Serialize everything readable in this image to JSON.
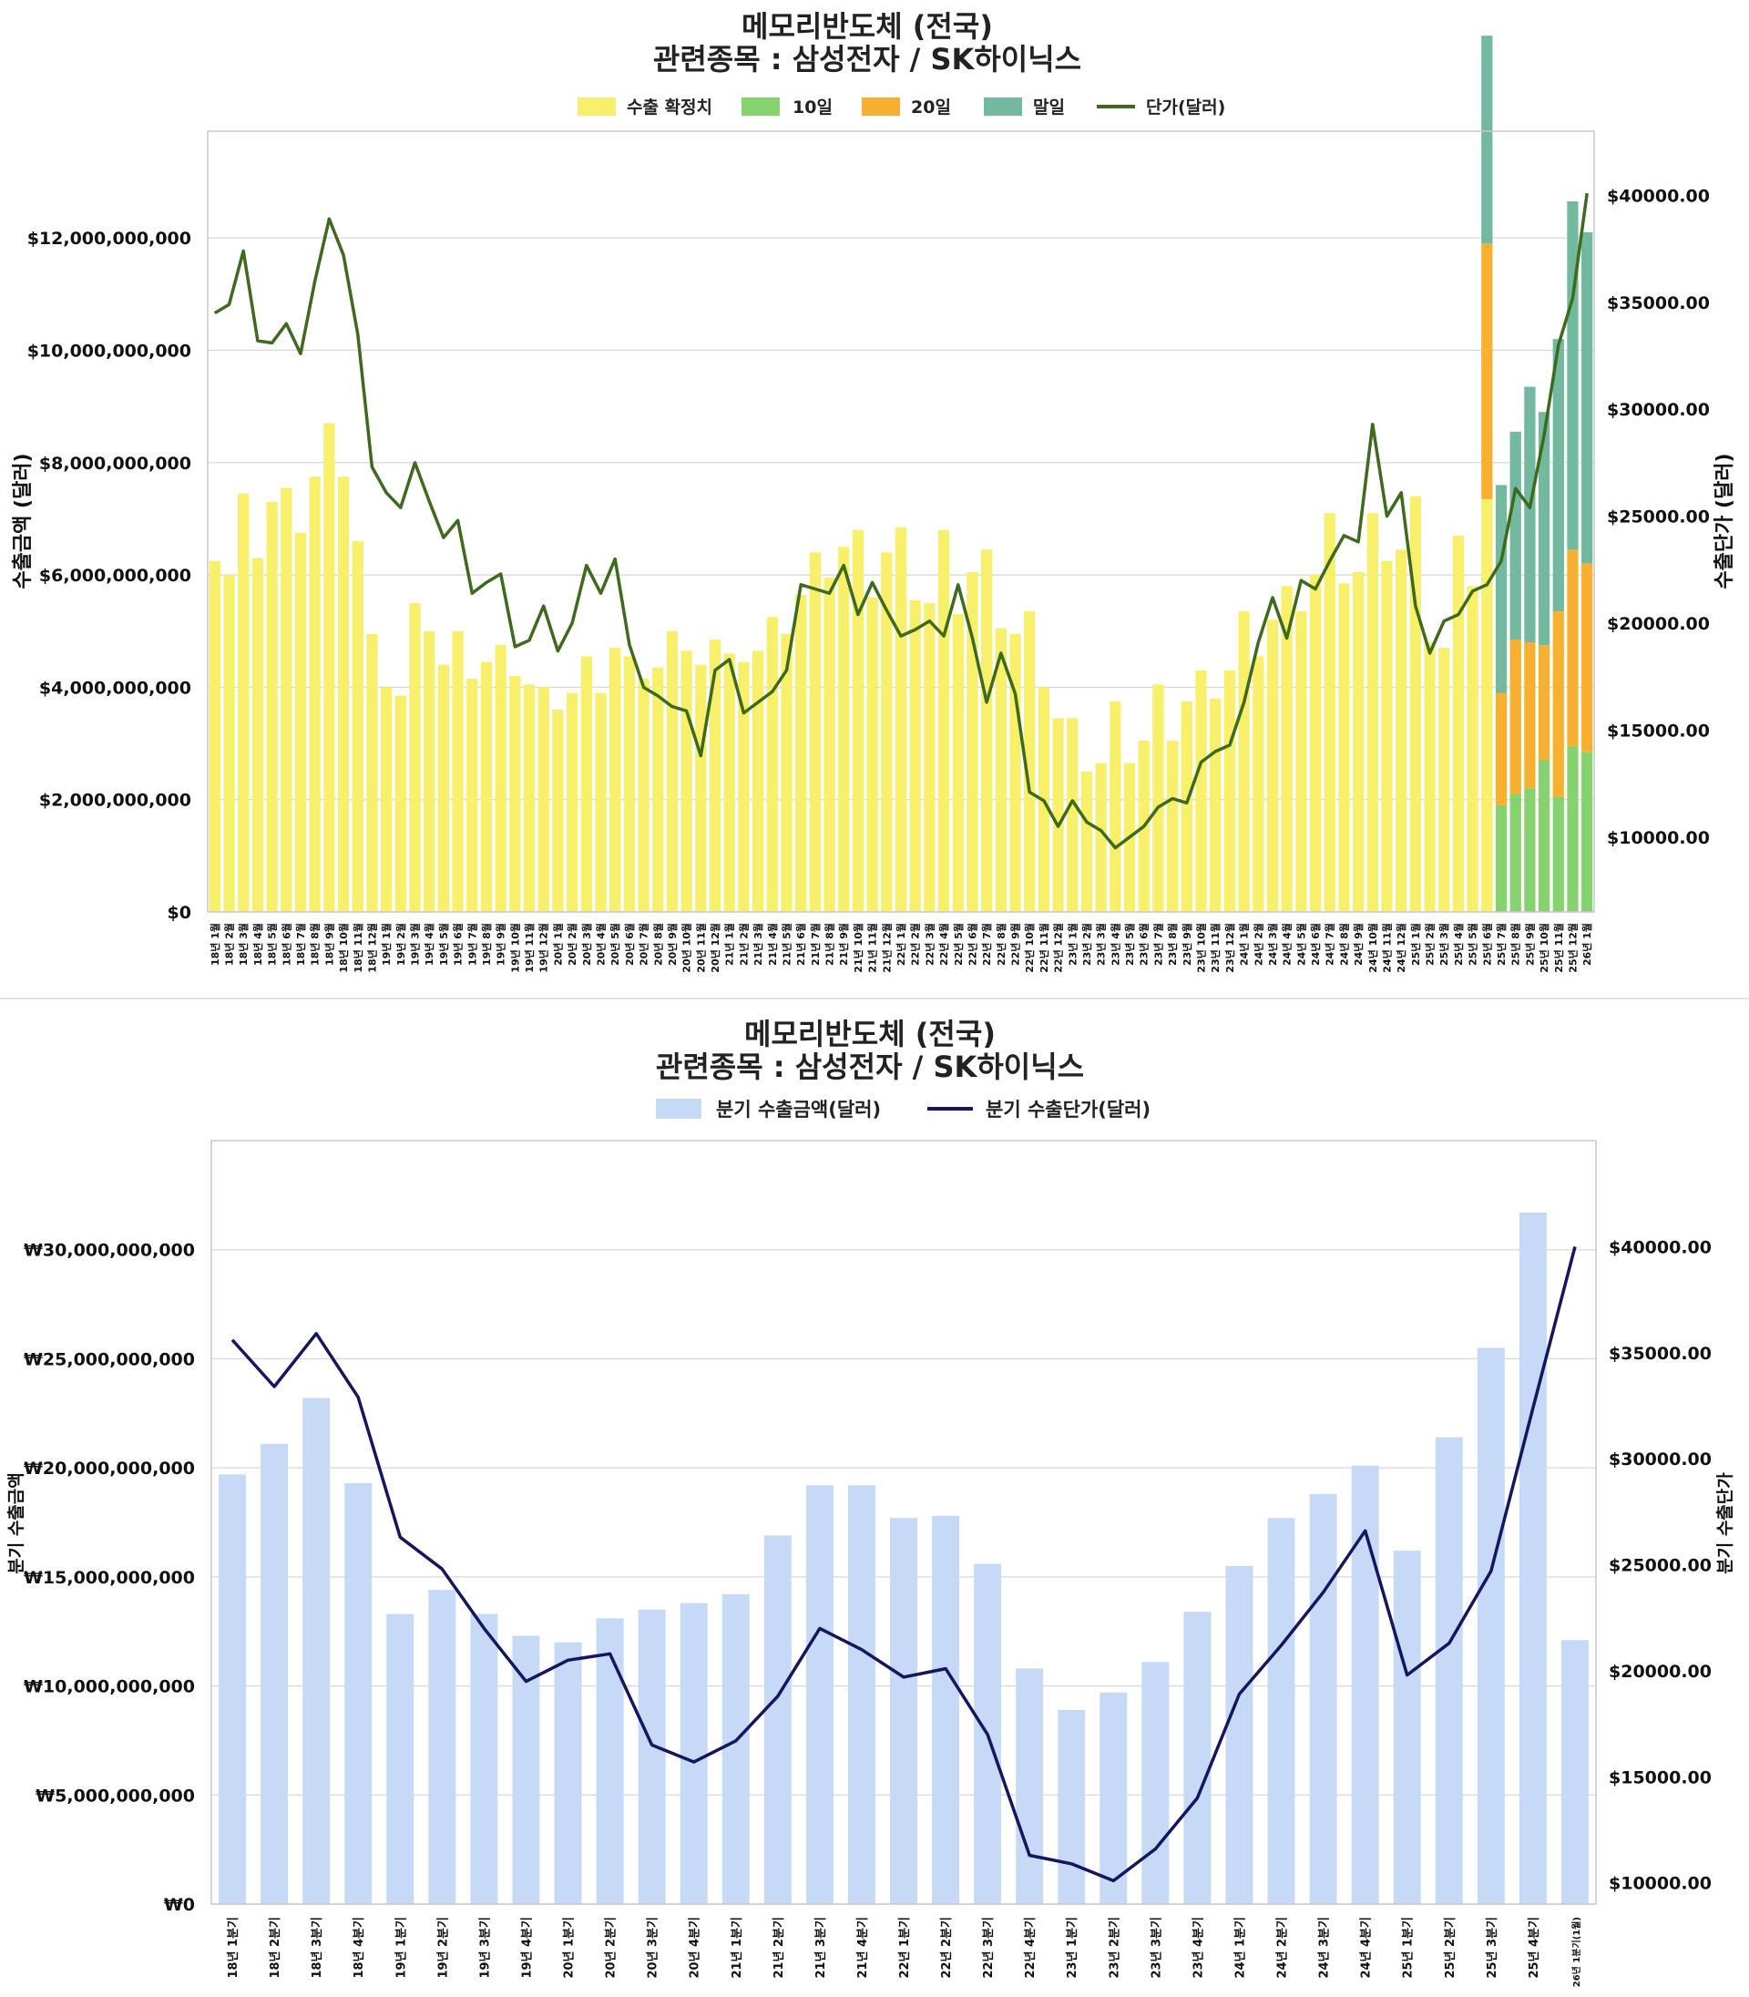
{
  "chart_data": [
    {
      "type": "bar",
      "title": "메모리반도체 (전국)",
      "subtitle": "관련종목 : 삼성전자 / SK하이닉스",
      "ylabel": "수출금액 (달러)",
      "y2label": "수출단가 (달러)",
      "ylim": [
        0,
        13900000000
      ],
      "y2lim": [
        6500,
        43000
      ],
      "yticks": [
        "$0",
        "$2,000,000,000",
        "$4,000,000,000",
        "$6,000,000,000",
        "$8,000,000,000",
        "$10,000,000,000",
        "$12,000,000,000"
      ],
      "y2ticks": [
        "$10000.00",
        "$15000.00",
        "$20000.00",
        "$25000.00",
        "$30000.00",
        "$35000.00",
        "$40000.00"
      ],
      "legend": [
        "수출 확정치",
        "10일",
        "20일",
        "말일",
        "단가(달러)"
      ],
      "legend_position": "top-center",
      "grid": true,
      "colors": {
        "confirmed": "#f8ef6a",
        "d10": "#86d26f",
        "d20": "#f8b031",
        "end": "#72b9a0",
        "line": "#3d6a1c"
      },
      "categories": [
        "18년 1월",
        "18년 2월",
        "18년 3월",
        "18년 4월",
        "18년 5월",
        "18년 6월",
        "18년 7월",
        "18년 8월",
        "18년 9월",
        "18년 10월",
        "18년 11월",
        "18년 12월",
        "19년 1월",
        "19년 2월",
        "19년 3월",
        "19년 4월",
        "19년 5월",
        "19년 6월",
        "19년 7월",
        "19년 8월",
        "19년 9월",
        "19년 10월",
        "19년 11월",
        "19년 12월",
        "20년 1월",
        "20년 2월",
        "20년 3월",
        "20년 4월",
        "20년 5월",
        "20년 6월",
        "20년 7월",
        "20년 8월",
        "20년 9월",
        "20년 10월",
        "20년 11월",
        "20년 12월",
        "21년 1월",
        "21년 2월",
        "21년 3월",
        "21년 4월",
        "21년 5월",
        "21년 6월",
        "21년 7월",
        "21년 8월",
        "21년 9월",
        "21년 10월",
        "21년 11월",
        "21년 12월",
        "22년 1월",
        "22년 2월",
        "22년 3월",
        "22년 4월",
        "22년 5월",
        "22년 6월",
        "22년 7월",
        "22년 8월",
        "22년 9월",
        "22년 10월",
        "22년 11월",
        "22년 12월",
        "23년 1월",
        "23년 2월",
        "23년 3월",
        "23년 4월",
        "23년 5월",
        "23년 6월",
        "23년 7월",
        "23년 8월",
        "23년 9월",
        "23년 10월",
        "23년 11월",
        "23년 12월",
        "24년 1월",
        "24년 2월",
        "24년 3월",
        "24년 4월",
        "24년 5월",
        "24년 6월",
        "24년 7월",
        "24년 8월",
        "24년 9월",
        "24년 10월",
        "24년 11월",
        "24년 12월",
        "25년 1월",
        "25년 2월",
        "25년 3월",
        "25년 4월",
        "25년 5월",
        "25년 6월",
        "25년 7월",
        "25년 8월",
        "25년 9월",
        "25년 10월",
        "25년 11월",
        "25년 12월",
        "26년 1월"
      ],
      "series": [
        {
          "name": "수출 확정치",
          "values": [
            6250000000,
            6000000000,
            7450000000,
            6300000000,
            7300000000,
            7550000000,
            6750000000,
            7750000000,
            8700000000,
            7750000000,
            6600000000,
            4950000000,
            4000000000,
            3850000000,
            5500000000,
            5000000000,
            4400000000,
            5000000000,
            4150000000,
            4450000000,
            4750000000,
            4200000000,
            4050000000,
            4000000000,
            3600000000,
            3900000000,
            4550000000,
            3900000000,
            4700000000,
            4550000000,
            4150000000,
            4350000000,
            5000000000,
            4650000000,
            4400000000,
            4850000000,
            4600000000,
            4450000000,
            4650000000,
            5250000000,
            4950000000,
            5650000000,
            6400000000,
            5950000000,
            6500000000,
            6800000000,
            5600000000,
            6400000000,
            6850000000,
            5550000000,
            5500000000,
            6800000000,
            5300000000,
            6050000000,
            6450000000,
            5050000000,
            4950000000,
            5350000000,
            4000000000,
            3450000000,
            3450000000,
            2500000000,
            2650000000,
            3750000000,
            2650000000,
            3050000000,
            4050000000,
            3050000000,
            3750000000,
            4300000000,
            3800000000,
            4300000000,
            5350000000,
            4550000000,
            5200000000,
            5800000000,
            5350000000,
            6000000000,
            7100000000,
            5850000000,
            6050000000,
            7100000000,
            6250000000,
            6450000000,
            7400000000,
            4800000000,
            4700000000,
            6700000000,
            5800000000,
            7350000000,
            0,
            0,
            0,
            0,
            0,
            0,
            0
          ]
        },
        {
          "name": "10일",
          "values": [
            0,
            0,
            0,
            0,
            0,
            0,
            0,
            0,
            0,
            0,
            0,
            0,
            0,
            0,
            0,
            0,
            0,
            0,
            0,
            0,
            0,
            0,
            0,
            0,
            0,
            0,
            0,
            0,
            0,
            0,
            0,
            0,
            0,
            0,
            0,
            0,
            0,
            0,
            0,
            0,
            0,
            0,
            0,
            0,
            0,
            0,
            0,
            0,
            0,
            0,
            0,
            0,
            0,
            0,
            0,
            0,
            0,
            0,
            0,
            0,
            0,
            0,
            0,
            0,
            0,
            0,
            0,
            0,
            0,
            0,
            0,
            0,
            0,
            0,
            0,
            0,
            0,
            0,
            0,
            0,
            0,
            0,
            0,
            0,
            0,
            0,
            0,
            0,
            0,
            0,
            1900000000,
            2100000000,
            2200000000,
            2700000000,
            2050000000,
            2950000000,
            2850000000
          ]
        },
        {
          "name": "20일",
          "values": [
            0,
            0,
            0,
            0,
            0,
            0,
            0,
            0,
            0,
            0,
            0,
            0,
            0,
            0,
            0,
            0,
            0,
            0,
            0,
            0,
            0,
            0,
            0,
            0,
            0,
            0,
            0,
            0,
            0,
            0,
            0,
            0,
            0,
            0,
            0,
            0,
            0,
            0,
            0,
            0,
            0,
            0,
            0,
            0,
            0,
            0,
            0,
            0,
            0,
            0,
            0,
            0,
            0,
            0,
            0,
            0,
            0,
            0,
            0,
            0,
            0,
            0,
            0,
            0,
            0,
            0,
            0,
            0,
            0,
            0,
            0,
            0,
            0,
            0,
            0,
            0,
            0,
            0,
            0,
            0,
            0,
            0,
            0,
            0,
            0,
            0,
            0,
            0,
            0,
            4550000000,
            2000000000,
            2750000000,
            2600000000,
            2050000000,
            3300000000,
            3500000000,
            3350000000
          ]
        },
        {
          "name": "말일",
          "values": [
            0,
            0,
            0,
            0,
            0,
            0,
            0,
            0,
            0,
            0,
            0,
            0,
            0,
            0,
            0,
            0,
            0,
            0,
            0,
            0,
            0,
            0,
            0,
            0,
            0,
            0,
            0,
            0,
            0,
            0,
            0,
            0,
            0,
            0,
            0,
            0,
            0,
            0,
            0,
            0,
            0,
            0,
            0,
            0,
            0,
            0,
            0,
            0,
            0,
            0,
            0,
            0,
            0,
            0,
            0,
            0,
            0,
            0,
            0,
            0,
            0,
            0,
            0,
            0,
            0,
            0,
            0,
            0,
            0,
            0,
            0,
            0,
            0,
            0,
            0,
            0,
            0,
            0,
            0,
            0,
            0,
            0,
            0,
            0,
            0,
            0,
            0,
            0,
            0,
            3700000000,
            3700000000,
            3700000000,
            4550000000,
            4150000000,
            4850000000,
            6200000000,
            5900000000
          ]
        },
        {
          "name": "단가(달러)",
          "axis": "right",
          "values": [
            34500,
            34900,
            37400,
            33200,
            33100,
            34000,
            32600,
            36000,
            38900,
            37200,
            33500,
            27300,
            26100,
            25400,
            27500,
            25700,
            24000,
            24800,
            21400,
            21900,
            22300,
            18900,
            19200,
            20800,
            18700,
            20000,
            22700,
            21400,
            23000,
            19000,
            17000,
            16600,
            16100,
            15900,
            13800,
            17800,
            18300,
            15800,
            16300,
            16800,
            17800,
            21800,
            21600,
            21400,
            22700,
            20400,
            21900,
            20600,
            19400,
            19700,
            20100,
            19400,
            21800,
            19300,
            16300,
            18600,
            16700,
            12100,
            11700,
            10500,
            11700,
            10700,
            10300,
            9500,
            10000,
            10500,
            11400,
            11800,
            11600,
            13500,
            14000,
            14300,
            16300,
            19100,
            21200,
            19300,
            22000,
            21600,
            22900,
            24100,
            23800,
            29300,
            25000,
            26100,
            20800,
            18600,
            20100,
            20400,
            21500,
            21800,
            22900,
            26300,
            25400,
            28800,
            33000,
            35200,
            40100
          ]
        }
      ]
    },
    {
      "type": "bar",
      "title": "메모리반도체 (전국)",
      "subtitle": "관련종목 : 삼성전자 / SK하이닉스",
      "ylabel": "분기 수출금액",
      "y2label": "분기 수출단가",
      "ylim": [
        0,
        35000000000
      ],
      "y2lim": [
        9000,
        45000
      ],
      "yticks": [
        "₩0",
        "₩5,000,000,000",
        "₩10,000,000,000",
        "₩15,000,000,000",
        "₩20,000,000,000",
        "₩25,000,000,000",
        "₩30,000,000,000"
      ],
      "y2ticks": [
        "$10000.00",
        "$15000.00",
        "$20000.00",
        "$25000.00",
        "$30000.00",
        "$35000.00",
        "$40000.00"
      ],
      "legend": [
        "분기 수출금액(달러)",
        "분기 수출단가(달러)"
      ],
      "legend_position": "top-center",
      "grid": true,
      "colors": {
        "bar": "#c6d9f7",
        "line": "#151560"
      },
      "categories": [
        "18년 1분기",
        "18년 2분기",
        "18년 3분기",
        "18년 4분기",
        "19년 1분기",
        "19년 2분기",
        "19년 3분기",
        "19년 4분기",
        "20년 1분기",
        "20년 2분기",
        "20년 3분기",
        "20년 4분기",
        "21년 1분기",
        "21년 2분기",
        "21년 3분기",
        "21년 4분기",
        "22년 1분기",
        "22년 2분기",
        "22년 3분기",
        "22년 4분기",
        "23년 1분기",
        "23년 2분기",
        "23년 3분기",
        "23년 4분기",
        "24년 1분기",
        "24년 2분기",
        "24년 3분기",
        "24년 4분기",
        "25년 1분기",
        "25년 2분기",
        "25년 3분기",
        "25년 4분기",
        "26년 1분기(1월)"
      ],
      "series": [
        {
          "name": "분기 수출금액(달러)",
          "values": [
            19700000000,
            21100000000,
            23200000000,
            19300000000,
            13300000000,
            14400000000,
            13300000000,
            12300000000,
            12000000000,
            13100000000,
            13500000000,
            13800000000,
            14200000000,
            16900000000,
            19200000000,
            19200000000,
            17700000000,
            17800000000,
            15600000000,
            10800000000,
            8900000000,
            9700000000,
            11100000000,
            13400000000,
            15500000000,
            17700000000,
            18800000000,
            20100000000,
            16200000000,
            21400000000,
            25500000000,
            31700000000,
            12100000000
          ]
        },
        {
          "name": "분기 수출단가(달러)",
          "axis": "right",
          "values": [
            35600,
            33400,
            35900,
            32900,
            26300,
            24800,
            22000,
            19500,
            20500,
            20800,
            16500,
            15700,
            16700,
            18800,
            22000,
            21000,
            19700,
            20100,
            17000,
            11300,
            10900,
            10100,
            11600,
            14000,
            18900,
            21200,
            23700,
            26600,
            19800,
            21300,
            24700,
            32400,
            40000
          ]
        }
      ]
    }
  ]
}
